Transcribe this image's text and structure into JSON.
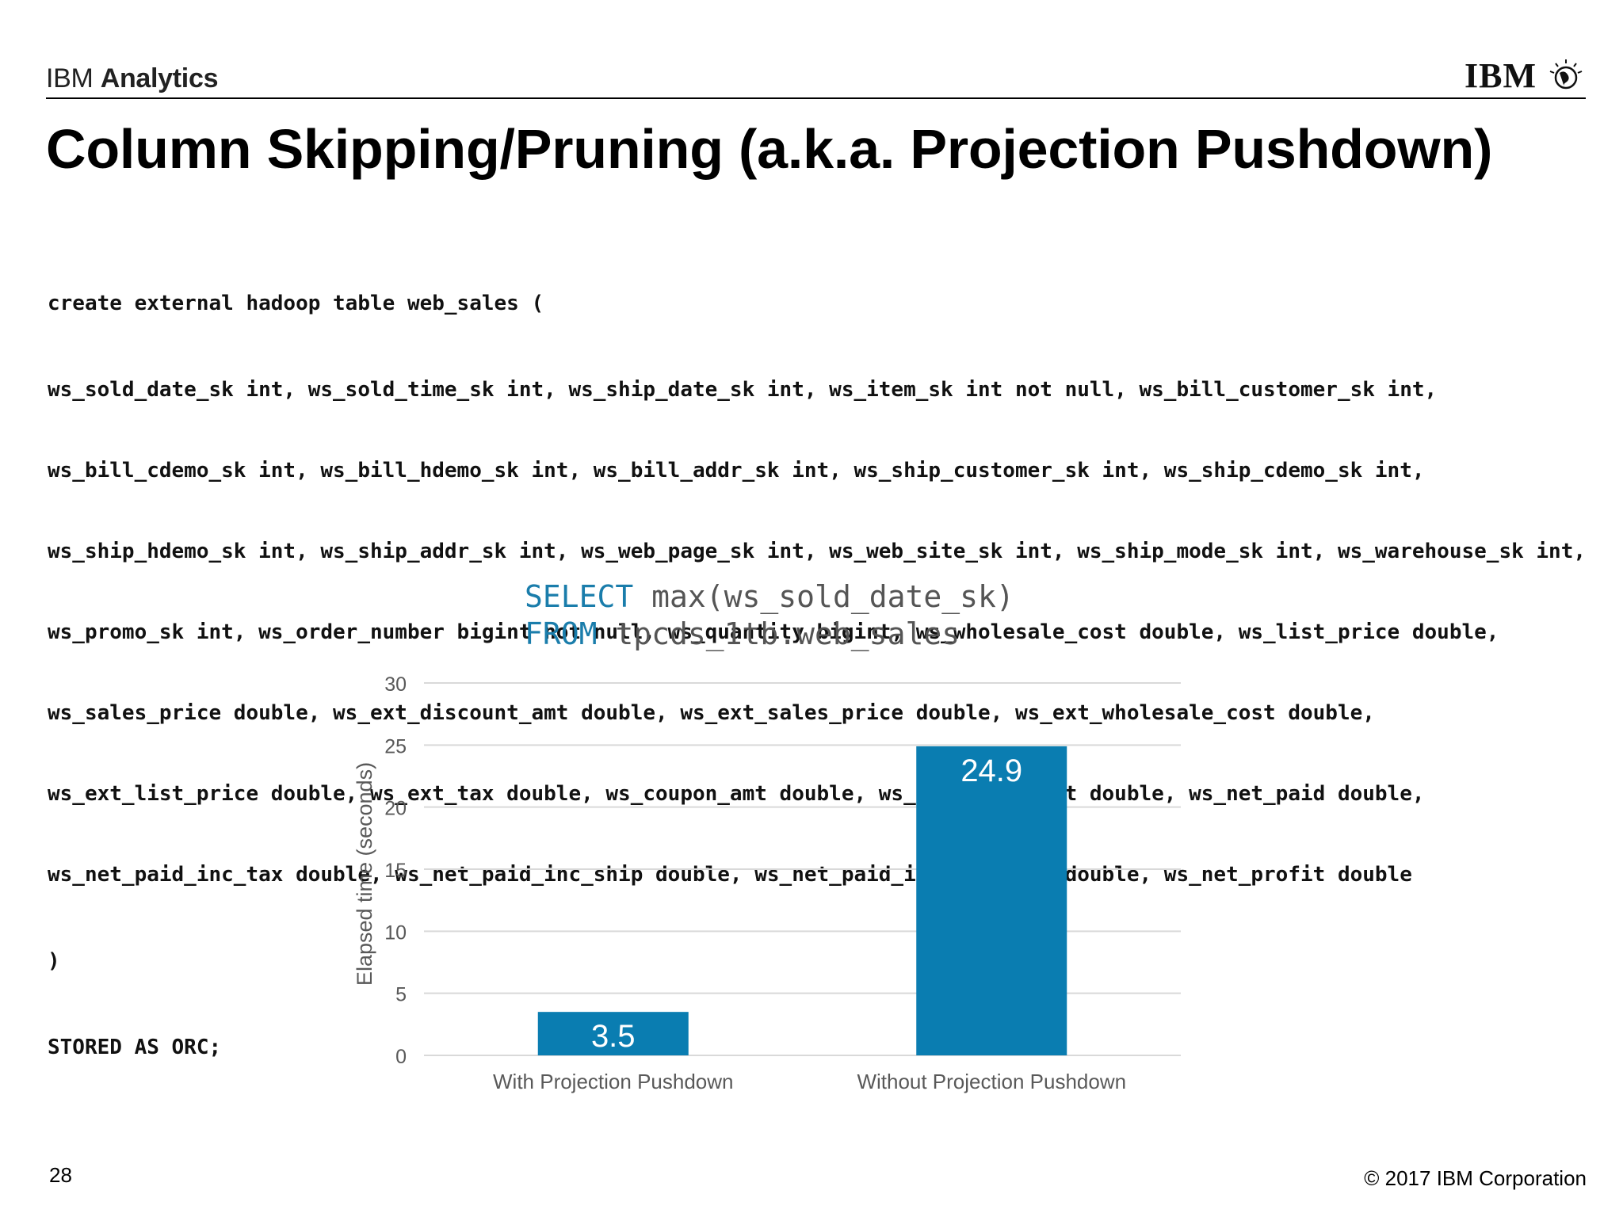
{
  "header": {
    "brand_prefix": "IBM ",
    "brand_bold": "Analytics",
    "logo_text": "IBM"
  },
  "title": "Column Skipping/Pruning (a.k.a. Projection Pushdown)",
  "code": {
    "lines": [
      "create external hadoop table web_sales (",
      "ws_sold_date_sk int, ws_sold_time_sk int, ws_ship_date_sk int, ws_item_sk int not null, ws_bill_customer_sk int,",
      "ws_bill_cdemo_sk int, ws_bill_hdemo_sk int, ws_bill_addr_sk int, ws_ship_customer_sk int, ws_ship_cdemo_sk int,",
      "ws_ship_hdemo_sk int, ws_ship_addr_sk int, ws_web_page_sk int, ws_web_site_sk int, ws_ship_mode_sk int, ws_warehouse_sk int,",
      "ws_promo_sk int, ws_order_number bigint not null, ws_quantity bigint, ws_wholesale_cost double, ws_list_price double,",
      "ws_sales_price double, ws_ext_discount_amt double, ws_ext_sales_price double, ws_ext_wholesale_cost double,",
      "ws_ext_list_price double, ws_ext_tax double, ws_coupon_amt double, ws_ext_ship_cost double, ws_net_paid double,",
      "ws_net_paid_inc_tax double, ws_net_paid_inc_ship double, ws_net_paid_inc_ship_tax double, ws_net_profit double",
      ")",
      "STORED AS ORC;"
    ]
  },
  "query": {
    "line1_keyword": "SELECT",
    "line1_rest": " max(ws_sold_date_sk)",
    "line2_keyword": "FROM",
    "line2_rest": " tpcds_1tb.web_sales"
  },
  "chart_data": {
    "type": "bar",
    "title": "",
    "xlabel": "",
    "ylabel": "Elapsed time (seconds)",
    "categories": [
      "With Projection Pushdown",
      "Without Projection Pushdown"
    ],
    "values": [
      3.5,
      24.9
    ],
    "ylim": [
      0,
      30
    ],
    "yticks": [
      0,
      5,
      10,
      15,
      20,
      25,
      30
    ],
    "grid": true,
    "bar_color": "#0a7db1",
    "data_labels": [
      "3.5",
      "24.9"
    ]
  },
  "footer": {
    "page_number": "28",
    "copyright": "© 2017 IBM Corporation"
  }
}
